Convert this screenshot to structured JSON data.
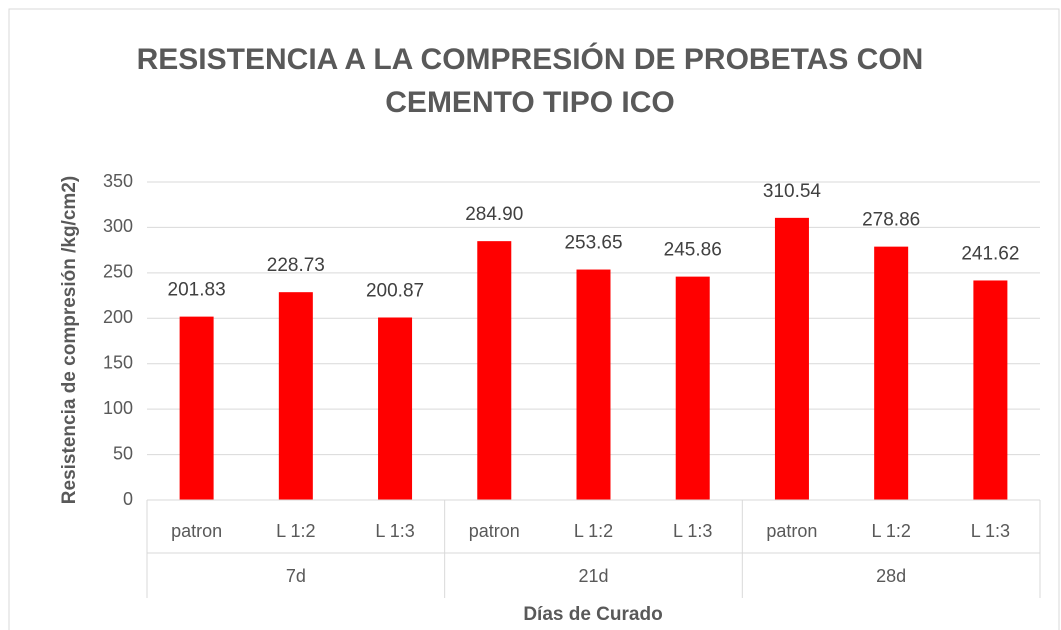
{
  "chart_data": {
    "type": "bar",
    "title": "RESISTENCIA A LA COMPRESIÓN DE PROBETAS CON CEMENTO TIPO ICO",
    "xlabel": "Días de Curado",
    "ylabel": "Resistencia de compresión /kg/cm2)",
    "categories": [
      "patron",
      "L 1:2",
      "L 1:3",
      "patron",
      "L 1:2",
      "L 1:3",
      "patron",
      "L 1:2",
      "L 1:3"
    ],
    "groups": [
      "7d",
      "21d",
      "28d"
    ],
    "values": [
      201.83,
      228.73,
      200.87,
      284.9,
      253.65,
      245.86,
      310.54,
      278.86,
      241.62
    ],
    "value_labels": [
      "201.83",
      "228.73",
      "200.87",
      "284.90",
      "253.65",
      "245.86",
      "310.54",
      "278.86",
      "241.62"
    ],
    "color": "#ff0000",
    "ylim": [
      0,
      350
    ],
    "yticks": [
      0,
      50,
      100,
      150,
      200,
      250,
      300,
      350
    ],
    "grid": true
  }
}
